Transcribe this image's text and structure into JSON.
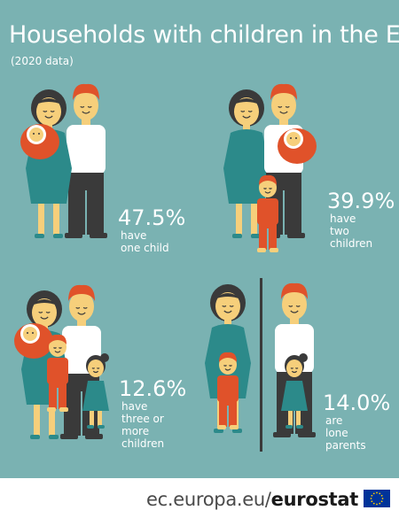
{
  "title": "Households with children in the EU",
  "subtitle": "(2020 data)",
  "chart_data": {
    "type": "table",
    "title": "Households with children in the EU",
    "subtitle": "(2020 data)",
    "categories": [
      "have one child",
      "have two children",
      "have three or more children",
      "are lone parents"
    ],
    "values": [
      47.5,
      39.9,
      12.6,
      14.0
    ],
    "unit": "%"
  },
  "stats": [
    {
      "value": "47.5%",
      "lines": [
        "have",
        "one child"
      ]
    },
    {
      "value": "39.9%",
      "lines": [
        "have",
        "two",
        "children"
      ]
    },
    {
      "value": "12.6%",
      "lines": [
        "have",
        "three or",
        "more",
        "children"
      ]
    },
    {
      "value": "14.0%",
      "lines": [
        "are",
        "lone",
        "parents"
      ]
    }
  ],
  "footer": {
    "site": "ec.europa.eu/",
    "brand": "eurostat"
  },
  "colors": {
    "background": "#7ab2b2",
    "teal_dress": "#2c8a8a",
    "orange": "#e0522a",
    "skin": "#f6cf7b",
    "hair_dark": "#3a3a3a",
    "hair_orange": "#e0522a",
    "shirt": "#ffffff",
    "pants": "#3a3a3a",
    "eu_blue": "#003399",
    "eu_yellow": "#ffcc00"
  },
  "icons": [
    "family-one-child-icon",
    "family-two-children-icon",
    "family-three-children-icon",
    "lone-parents-icon",
    "eu-flag-icon"
  ]
}
